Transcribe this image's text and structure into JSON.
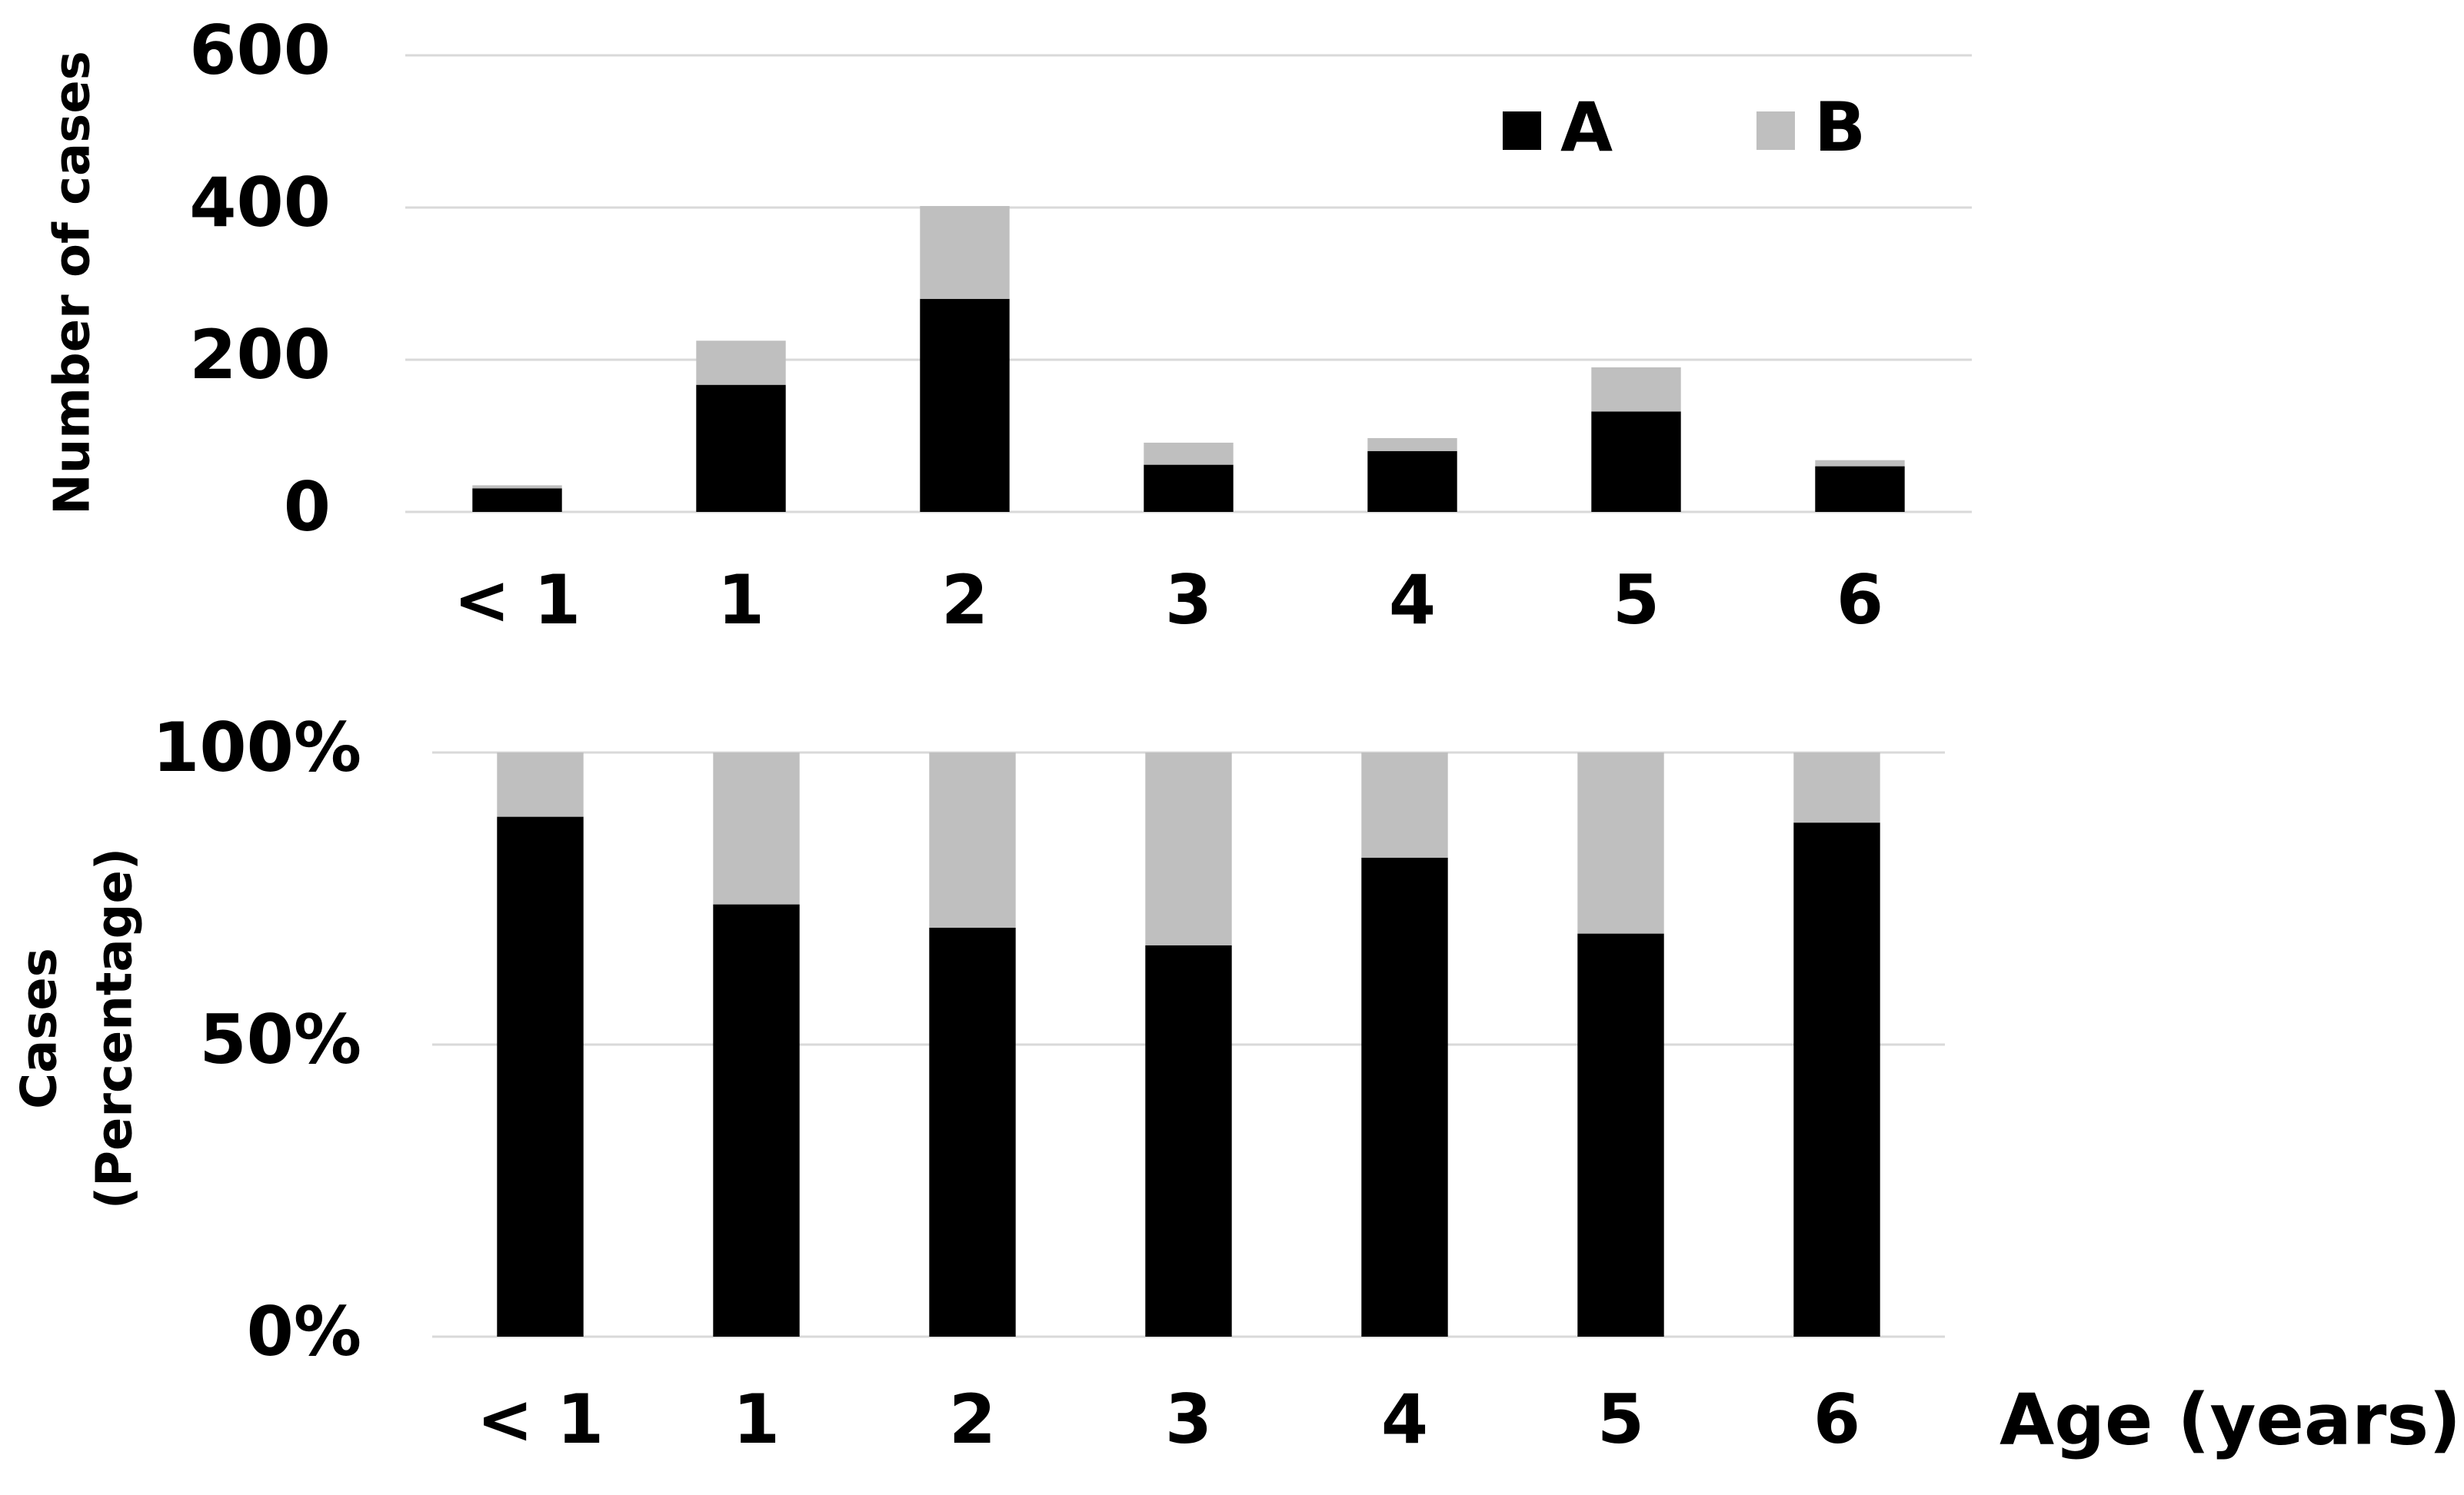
{
  "chart_data": [
    {
      "type": "stacked_bar",
      "ylabel": [
        "Number of cases"
      ],
      "categories": [
        "< 1",
        "1",
        "2",
        "3",
        "4",
        "5",
        "6"
      ],
      "series": [
        {
          "name": "A",
          "color": "#000000",
          "values": [
            31,
            167,
            280,
            62,
            80,
            132,
            60
          ]
        },
        {
          "name": "B",
          "color": "#bfbfbf",
          "values": [
            4,
            58,
            122,
            29,
            17,
            58,
            8
          ]
        }
      ],
      "ylim": [
        0,
        600
      ],
      "yticks": [
        0,
        200,
        400,
        600
      ],
      "grid": true,
      "legend": "top-right"
    },
    {
      "type": "stacked_bar",
      "ylabel": [
        "Cases",
        "(Percentage)"
      ],
      "xlabel": "Age (years)",
      "categories": [
        "< 1",
        "1",
        "2",
        "3",
        "4",
        "5",
        "6"
      ],
      "series": [
        {
          "name": "A",
          "color": "#000000",
          "values": [
            89,
            74,
            70,
            67,
            82,
            69,
            88
          ]
        },
        {
          "name": "B",
          "color": "#bfbfbf",
          "values": [
            11,
            26,
            30,
            33,
            18,
            31,
            12
          ]
        }
      ],
      "ylim": [
        0,
        100
      ],
      "yticks": [
        {
          "value": 0,
          "label": "0%"
        },
        {
          "value": 50,
          "label": "50%"
        },
        {
          "value": 100,
          "label": "100%"
        }
      ],
      "grid": true
    }
  ]
}
